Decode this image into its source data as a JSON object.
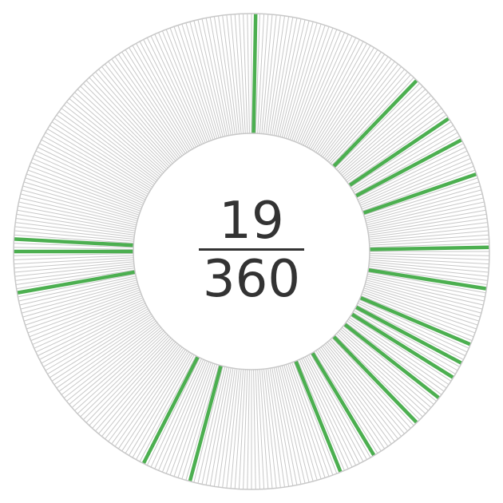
{
  "chart_data": {
    "type": "radial-fraction",
    "numerator": "19",
    "denominator": "360",
    "segment_count": 360,
    "highlighted_segments": [
      1,
      44,
      56,
      62,
      71,
      89,
      99,
      113,
      118,
      122,
      128,
      136,
      149,
      158,
      195,
      207,
      260,
      270,
      273
    ],
    "colors": {
      "highlight": "#4caf50",
      "spoke": "#c8c8c8",
      "ring_edge": "#c8c8c8",
      "text": "#333333",
      "background": "#ffffff"
    }
  }
}
